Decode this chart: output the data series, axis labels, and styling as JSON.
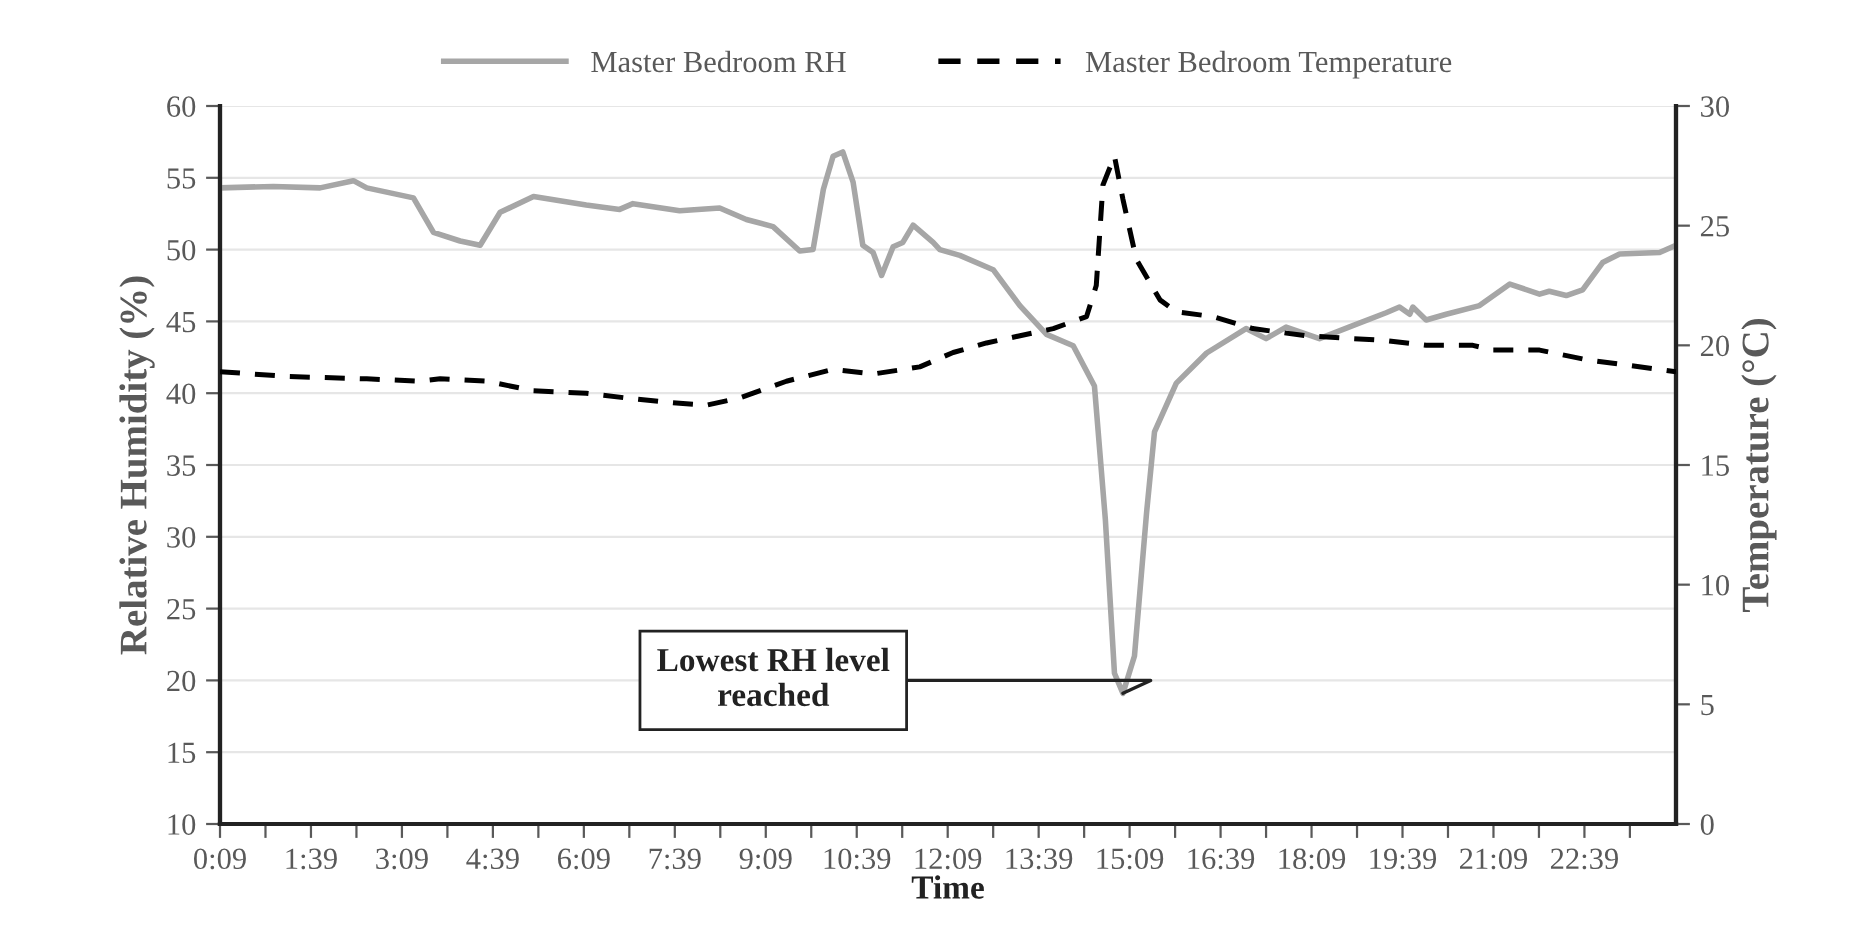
{
  "chart_data": {
    "type": "line",
    "xlabel": "Time",
    "ylabel": "Relative Humidity (%)",
    "y2label": "Temperature (°C)",
    "xlim": [
      0.15,
      24.16
    ],
    "ylim": [
      10,
      60
    ],
    "yticks": [
      10,
      15,
      20,
      25,
      30,
      35,
      40,
      45,
      50,
      55,
      60
    ],
    "y2lim": [
      0,
      30
    ],
    "y2ticks": [
      0,
      5,
      10,
      15,
      20,
      25,
      30
    ],
    "xticks": [
      {
        "value": 0.15,
        "label": "0:09"
      },
      {
        "value": 0.9,
        "label": null
      },
      {
        "value": 1.65,
        "label": "1:39"
      },
      {
        "value": 2.4,
        "label": null
      },
      {
        "value": 3.15,
        "label": "3:09"
      },
      {
        "value": 3.9,
        "label": null
      },
      {
        "value": 4.65,
        "label": "4:39"
      },
      {
        "value": 5.4,
        "label": null
      },
      {
        "value": 6.15,
        "label": "6:09"
      },
      {
        "value": 6.9,
        "label": null
      },
      {
        "value": 7.65,
        "label": "7:39"
      },
      {
        "value": 8.4,
        "label": null
      },
      {
        "value": 9.15,
        "label": "9:09"
      },
      {
        "value": 9.9,
        "label": null
      },
      {
        "value": 10.65,
        "label": "10:39"
      },
      {
        "value": 11.4,
        "label": null
      },
      {
        "value": 12.15,
        "label": "12:09"
      },
      {
        "value": 12.9,
        "label": null
      },
      {
        "value": 13.65,
        "label": "13:39"
      },
      {
        "value": 14.4,
        "label": null
      },
      {
        "value": 15.15,
        "label": "15:09"
      },
      {
        "value": 15.9,
        "label": null
      },
      {
        "value": 16.65,
        "label": "16:39"
      },
      {
        "value": 17.4,
        "label": null
      },
      {
        "value": 18.15,
        "label": "18:09"
      },
      {
        "value": 18.9,
        "label": null
      },
      {
        "value": 19.65,
        "label": "19:39"
      },
      {
        "value": 20.4,
        "label": null
      },
      {
        "value": 21.15,
        "label": "21:09"
      },
      {
        "value": 21.9,
        "label": null
      },
      {
        "value": 22.65,
        "label": "22:39"
      },
      {
        "value": 23.4,
        "label": null
      }
    ],
    "grid": "y",
    "legend": "top",
    "marker": "none",
    "series": [
      {
        "name": "Master Bedroom RH",
        "color": "#a6a6a6",
        "line_style": "solid",
        "x": [
          0.15,
          1.03,
          1.8,
          2.35,
          2.57,
          3.34,
          3.67,
          4.11,
          4.44,
          4.77,
          5.32,
          6.19,
          6.74,
          6.96,
          7.73,
          8.39,
          8.83,
          9.27,
          9.71,
          9.93,
          10.1,
          10.26,
          10.42,
          10.59,
          10.75,
          10.92,
          11.06,
          11.25,
          11.41,
          11.58,
          11.91,
          12.02,
          12.35,
          12.9,
          13.34,
          13.78,
          14.22,
          14.57,
          14.75,
          14.9,
          15.04,
          15.23,
          15.43,
          15.56,
          15.92,
          16.42,
          17.07,
          17.4,
          17.73,
          18.28,
          18.83,
          19.38,
          19.6,
          19.77,
          19.82,
          20.04,
          20.37,
          20.92,
          21.42,
          21.91,
          22.07,
          22.35,
          22.62,
          22.95,
          23.23,
          23.89,
          24.16
        ],
        "values": [
          54.3,
          54.4,
          54.3,
          54.8,
          54.3,
          53.6,
          51.2,
          50.6,
          50.3,
          52.6,
          53.7,
          53.1,
          52.8,
          53.2,
          52.7,
          52.9,
          52.1,
          51.6,
          49.9,
          50.0,
          54.2,
          56.5,
          56.8,
          54.7,
          50.3,
          49.8,
          48.2,
          50.2,
          50.5,
          51.7,
          50.5,
          50.0,
          49.6,
          48.6,
          46.1,
          44.1,
          43.3,
          40.5,
          31.2,
          20.5,
          19.1,
          21.7,
          31.7,
          37.3,
          40.7,
          42.8,
          44.5,
          43.8,
          44.6,
          43.8,
          44.7,
          45.6,
          46.0,
          45.5,
          46.0,
          45.1,
          45.5,
          46.1,
          47.6,
          46.9,
          47.1,
          46.8,
          47.2,
          49.1,
          49.7,
          49.8,
          50.3
        ]
      },
      {
        "name": "Master Bedroom Temperature",
        "color": "#000000",
        "line_style": "dashed",
        "axis": "y2",
        "x": [
          0.15,
          1.25,
          2.57,
          3.45,
          3.78,
          4.55,
          5.32,
          6.19,
          6.85,
          7.62,
          8.17,
          8.72,
          9.49,
          10.26,
          10.92,
          11.69,
          12.24,
          12.79,
          13.89,
          14.44,
          14.6,
          14.71,
          14.9,
          15.04,
          15.26,
          15.65,
          15.92,
          16.53,
          17.18,
          18.06,
          19.38,
          20.04,
          20.81,
          21.14,
          21.91,
          22.68,
          24.16
        ],
        "values": [
          18.9,
          18.7,
          18.6,
          18.5,
          18.6,
          18.5,
          18.1,
          18.0,
          17.8,
          17.6,
          17.5,
          17.8,
          18.5,
          19.0,
          18.8,
          19.1,
          19.7,
          20.1,
          20.7,
          21.2,
          22.5,
          26.7,
          27.9,
          26.1,
          23.6,
          21.9,
          21.4,
          21.2,
          20.7,
          20.4,
          20.2,
          20.0,
          20.0,
          19.8,
          19.8,
          19.4,
          18.9
        ]
      }
    ],
    "annotations": [
      {
        "text": "Lowest RH level\nreached",
        "x": 15.04,
        "y": 19.1
      }
    ]
  }
}
